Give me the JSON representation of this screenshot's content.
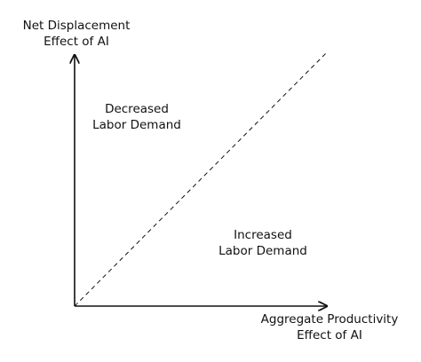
{
  "y_axis": {
    "title_line1": "Net Displacement",
    "title_line2": "Effect of AI"
  },
  "x_axis": {
    "title_line1": "Aggregate Productivity",
    "title_line2": "Effect of AI"
  },
  "regions": {
    "upper_left": {
      "line1": "Decreased",
      "line2": "Labor Demand"
    },
    "lower_right": {
      "line1": "Increased",
      "line2": "Labor Demand"
    }
  },
  "style": {
    "line_color": "#111111",
    "background": "#ffffff"
  }
}
